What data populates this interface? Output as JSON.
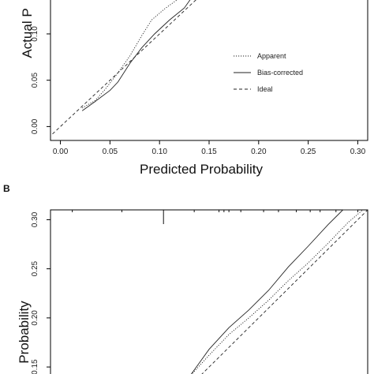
{
  "chart_data": [
    {
      "panel_label": "",
      "type": "line",
      "xlabel": "Predicted Probability",
      "ylabel": "Actual P",
      "xlim": [
        -0.01,
        0.31
      ],
      "ylim": [
        -0.015,
        0.14
      ],
      "x_ticks": [
        "0.00",
        "0.05",
        "0.10",
        "0.15",
        "0.20",
        "0.25",
        "0.30"
      ],
      "x_tick_values": [
        0.0,
        0.05,
        0.1,
        0.15,
        0.2,
        0.25,
        0.3
      ],
      "y_ticks": [
        "0.00",
        "0.05",
        "0.10"
      ],
      "y_tick_values": [
        0.0,
        0.05,
        0.1
      ],
      "grid": false,
      "legend_position": "right",
      "series": [
        {
          "name": "Apparent",
          "style": "dotted",
          "x": [
            0.022,
            0.035,
            0.045,
            0.058,
            0.07,
            0.082,
            0.092,
            0.105,
            0.118,
            0.128
          ],
          "y": [
            0.02,
            0.028,
            0.04,
            0.058,
            0.076,
            0.098,
            0.115,
            0.127,
            0.137,
            0.145
          ]
        },
        {
          "name": "Bias-corrected",
          "style": "solid",
          "x": [
            0.022,
            0.035,
            0.05,
            0.058,
            0.07,
            0.082,
            0.095,
            0.11,
            0.125,
            0.133
          ],
          "y": [
            0.017,
            0.027,
            0.039,
            0.048,
            0.068,
            0.085,
            0.1,
            0.115,
            0.128,
            0.14
          ]
        },
        {
          "name": "Ideal",
          "style": "dashed",
          "x": [
            -0.008,
            0.15
          ],
          "y": [
            -0.008,
            0.15
          ]
        }
      ]
    },
    {
      "panel_label": "B",
      "type": "line",
      "xlabel": "",
      "ylabel": "Probability",
      "xlim": [
        -0.01,
        0.31
      ],
      "ylim": [
        0.13,
        0.31
      ],
      "y_ticks": [
        "0.15",
        "0.20",
        "0.25",
        "0.30"
      ],
      "y_tick_values": [
        0.15,
        0.2,
        0.25,
        0.3
      ],
      "grid": false,
      "series": [
        {
          "name": "Apparent",
          "style": "dotted",
          "x": [
            0.13,
            0.15,
            0.17,
            0.19,
            0.21,
            0.23,
            0.25,
            0.27,
            0.29,
            0.305
          ],
          "y": [
            0.14,
            0.162,
            0.183,
            0.2,
            0.218,
            0.238,
            0.256,
            0.276,
            0.297,
            0.31
          ]
        },
        {
          "name": "Bias-corrected",
          "style": "solid",
          "x": [
            0.13,
            0.15,
            0.17,
            0.19,
            0.21,
            0.23,
            0.25,
            0.27,
            0.285,
            0.3
          ],
          "y": [
            0.14,
            0.168,
            0.19,
            0.208,
            0.228,
            0.252,
            0.273,
            0.295,
            0.31,
            0.31
          ]
        },
        {
          "name": "Ideal",
          "style": "dashed",
          "x": [
            0.13,
            0.31
          ],
          "y": [
            0.13,
            0.31
          ]
        }
      ],
      "rug_x": [
        0.012,
        0.062,
        0.104,
        0.135,
        0.16,
        0.165,
        0.17,
        0.182,
        0.205,
        0.22,
        0.238,
        0.252,
        0.262,
        0.278,
        0.3
      ]
    }
  ]
}
